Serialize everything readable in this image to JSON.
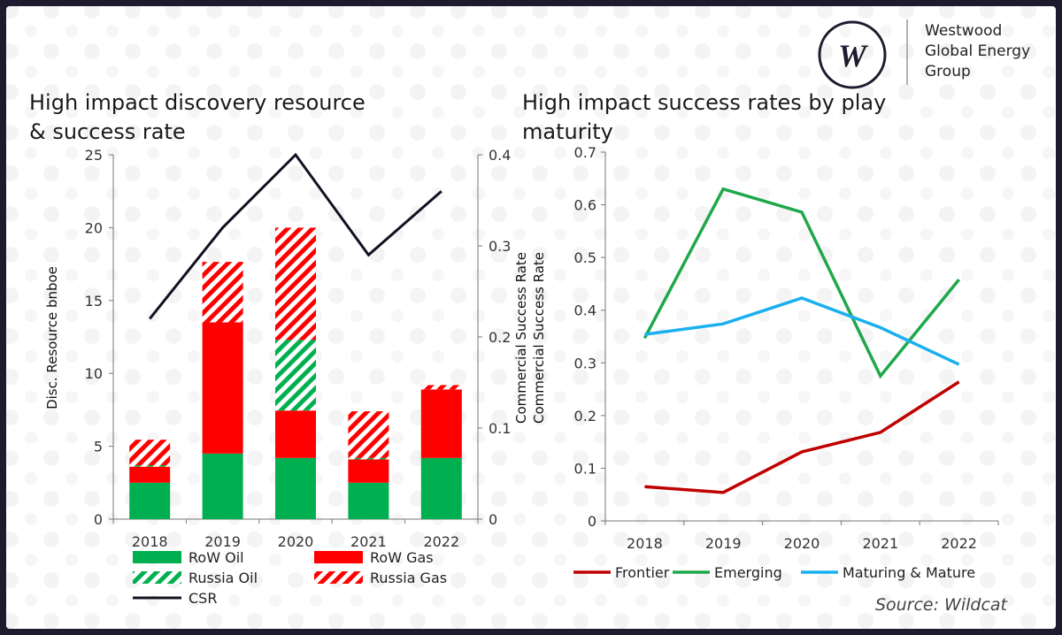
{
  "brand": {
    "lines": [
      "Westwood",
      "Global Energy",
      "Group"
    ],
    "logo_letter": "W",
    "colors": {
      "logo": "#1e1b2e"
    }
  },
  "source": "Source: Wildcat",
  "chart_data": [
    {
      "type": "bar",
      "stacked": true,
      "title_lines": [
        "High impact discovery resource",
        "& success rate"
      ],
      "categories": [
        "2018",
        "2019",
        "2020",
        "2021",
        "2022"
      ],
      "ylabel": "Disc. Resource bnboe",
      "ylim": [
        0,
        25
      ],
      "yticks": [
        "0",
        "5",
        "10",
        "15",
        "20",
        "25"
      ],
      "y2label": "Commercial Success Rate",
      "y2lim": [
        0,
        0.4
      ],
      "y2ticks": [
        "0",
        "0.1",
        "0.2",
        "0.3",
        "0.4"
      ],
      "grid": false,
      "legend_position": "bottom",
      "series": [
        {
          "name": "RoW Oil",
          "values": [
            2.5,
            4.5,
            4.2,
            2.5,
            4.2
          ],
          "color": "#00b050",
          "pattern": "solid"
        },
        {
          "name": "RoW Gas",
          "values": [
            1.1,
            9.0,
            3.25,
            1.6,
            4.7
          ],
          "color": "#ff0000",
          "pattern": "solid"
        },
        {
          "name": "Russia Oil",
          "values": [
            0.1,
            0,
            4.85,
            0.1,
            0
          ],
          "color": "#00b050",
          "pattern": "hatch"
        },
        {
          "name": "Russia Gas",
          "values": [
            1.75,
            4.15,
            7.7,
            3.2,
            0.3
          ],
          "color": "#ff0000",
          "pattern": "hatch"
        },
        {
          "name": "CSR",
          "type": "line",
          "axis": "y2",
          "values": [
            0.22,
            0.32,
            0.4,
            0.29,
            0.36
          ],
          "color": "#111122"
        }
      ]
    },
    {
      "type": "line",
      "title_lines": [
        "High impact success rates by play",
        "maturity"
      ],
      "categories": [
        "2018",
        "2019",
        "2020",
        "2021",
        "2022"
      ],
      "ylabel": "Commercial Success Rate",
      "ylim": [
        0,
        0.7
      ],
      "yticks": [
        "0",
        "0.1",
        "0.2",
        "0.3",
        "0.4",
        "0.5",
        "0.6",
        "0.7"
      ],
      "grid": false,
      "legend_position": "bottom",
      "series": [
        {
          "name": "Frontier",
          "values": [
            0.065,
            0.054,
            0.131,
            0.168,
            0.264
          ],
          "color": "#c00000"
        },
        {
          "name": "Emerging",
          "values": [
            0.347,
            0.63,
            0.586,
            0.275,
            0.458
          ],
          "color": "#1fa84a"
        },
        {
          "name": "Maturing & Mature",
          "values": [
            0.354,
            0.374,
            0.423,
            0.367,
            0.297
          ],
          "color": "#1ab0ef"
        }
      ]
    }
  ]
}
